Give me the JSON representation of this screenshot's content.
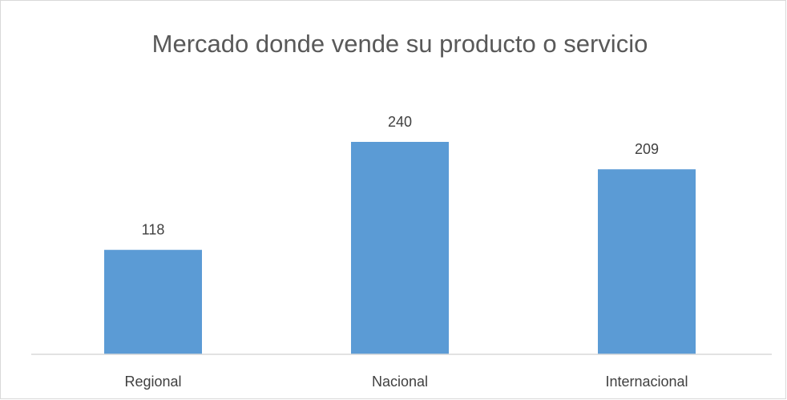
{
  "chart_data": {
    "type": "bar",
    "title": "Mercado donde vende su producto o servicio",
    "categories": [
      "Regional",
      "Nacional",
      "Internacional"
    ],
    "values": [
      118,
      240,
      209
    ],
    "data_labels": [
      "118",
      "240",
      "209"
    ],
    "ylim": [
      0,
      300
    ],
    "grid": false,
    "legend": "none",
    "y_axis_visible": false,
    "bar_color": "#5b9bd5",
    "axis_color": "#d9d9d9"
  }
}
